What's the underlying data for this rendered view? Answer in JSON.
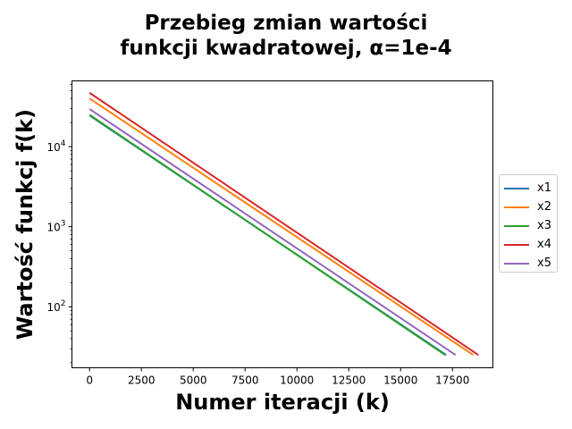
{
  "chart_data": {
    "type": "line",
    "title_line1": "Przebieg zmian wartości",
    "title_line2": "funkcji kwadratowej, α=1e-4",
    "xlabel": "Numer iteracji (k)",
    "ylabel": "Wartość funkcj f(k)",
    "x_ticks": [
      "0",
      "2500",
      "5000",
      "7500",
      "10000",
      "12500",
      "15000",
      "17500"
    ],
    "x_tick_values": [
      0,
      2500,
      5000,
      7500,
      10000,
      12500,
      15000,
      17500
    ],
    "y_ticks": [
      {
        "base": "10",
        "exp": "2",
        "value": 100
      },
      {
        "base": "10",
        "exp": "3",
        "value": 1000
      },
      {
        "base": "10",
        "exp": "4",
        "value": 10000
      }
    ],
    "yscale": "log",
    "xlim": [
      -850,
      19450
    ],
    "ylim": [
      17.3,
      66300
    ],
    "legend_position": "center-right",
    "series": [
      {
        "name": "x1",
        "color": "#1f77b4",
        "x": [
          0,
          17200
        ],
        "y": [
          24500,
          25
        ]
      },
      {
        "name": "x2",
        "color": "#ff7f0e",
        "x": [
          0,
          18500
        ],
        "y": [
          40000,
          25
        ]
      },
      {
        "name": "x3",
        "color": "#2ca02c",
        "x": [
          0,
          17150
        ],
        "y": [
          25000,
          25
        ]
      },
      {
        "name": "x4",
        "color": "#d62728",
        "x": [
          0,
          18750
        ],
        "y": [
          47000,
          25
        ]
      },
      {
        "name": "x5",
        "color": "#9467bd",
        "x": [
          0,
          17650
        ],
        "y": [
          29500,
          25
        ]
      }
    ]
  }
}
